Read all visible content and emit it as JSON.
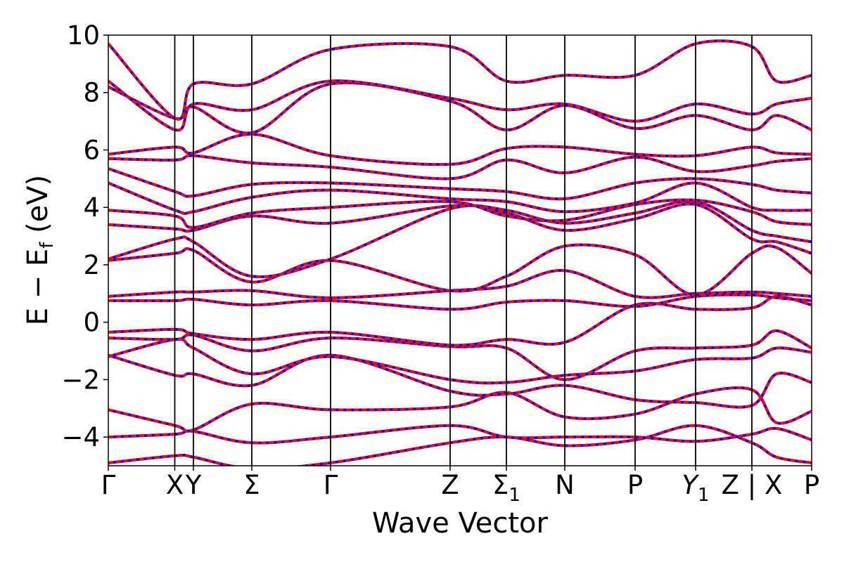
{
  "chart_data": {
    "type": "line",
    "title": "",
    "xlabel": "Wave Vector",
    "ylabel": "E − E",
    "ylabel_sub": "f",
    "ylabel_unit": " (eV)",
    "ylim": [
      -5,
      10
    ],
    "yticks": [
      -4,
      -2,
      0,
      2,
      4,
      6,
      8,
      10
    ],
    "ytick_labels": [
      "−4",
      "−2",
      "0",
      "2",
      "4",
      "6",
      "8",
      "10"
    ],
    "grid": false,
    "legend": "none",
    "xlim": [
      0,
      1
    ],
    "kpoints": [
      {
        "pos": 0.0,
        "label": "Γ"
      },
      {
        "pos": 0.0945,
        "label": "X"
      },
      {
        "pos": 0.121,
        "label": "Y"
      },
      {
        "pos": 0.204,
        "label": "Σ"
      },
      {
        "pos": 0.316,
        "label": "Γ"
      },
      {
        "pos": 0.486,
        "label": "Z"
      },
      {
        "pos": 0.566,
        "label": "Σ",
        "sub": "1"
      },
      {
        "pos": 0.649,
        "label": "N"
      },
      {
        "pos": 0.749,
        "label": "P"
      },
      {
        "pos": 0.835,
        "label": "Y",
        "sub": "1",
        "italic": true
      },
      {
        "pos": 0.915,
        "label": "Z | X"
      },
      {
        "pos": 1.0,
        "label": "P"
      }
    ],
    "series_styles": [
      {
        "color": "#0000ff",
        "dash": "none"
      },
      {
        "color": "#ff0000",
        "dash": "dashed"
      }
    ],
    "bands": [
      {
        "x": [
          0,
          0.095,
          0.121,
          0.204,
          0.316,
          0.486,
          0.566,
          0.649,
          0.749,
          0.835,
          0.915,
          0.95,
          1
        ],
        "y": [
          -4.9,
          -4.65,
          -4.7,
          -5.1,
          -4.9,
          -4.2,
          -4.0,
          -4.3,
          -4.1,
          -3.6,
          -4.2,
          -4.7,
          -4.9
        ]
      },
      {
        "x": [
          0,
          0.095,
          0.121,
          0.204,
          0.316,
          0.486,
          0.566,
          0.649,
          0.749,
          0.835,
          0.915,
          0.95,
          1
        ],
        "y": [
          -4.0,
          -3.9,
          -3.8,
          -4.2,
          -4.0,
          -3.6,
          -4.0,
          -4.0,
          -4.0,
          -4.15,
          -3.9,
          -3.7,
          -4.1
        ]
      },
      {
        "x": [
          0,
          0.095,
          0.121,
          0.204,
          0.316,
          0.486,
          0.566,
          0.649,
          0.749,
          0.835,
          0.915,
          0.95,
          1
        ],
        "y": [
          -3.05,
          -3.6,
          -3.75,
          -2.85,
          -3.05,
          -2.95,
          -2.45,
          -3.3,
          -3.2,
          -2.5,
          -2.35,
          -3.5,
          -3.1
        ]
      },
      {
        "x": [
          0,
          0.095,
          0.121,
          0.204,
          0.316,
          0.486,
          0.566,
          0.649,
          0.749,
          0.835,
          0.915,
          0.95,
          1
        ],
        "y": [
          -1.15,
          -1.85,
          -1.8,
          -2.2,
          -1.15,
          -2.4,
          -2.5,
          -2.2,
          -2.7,
          -2.8,
          -2.9,
          -1.8,
          -2.1
        ]
      },
      {
        "x": [
          0,
          0.095,
          0.121,
          0.204,
          0.316,
          0.486,
          0.566,
          0.649,
          0.749,
          0.835,
          0.915,
          0.95,
          1
        ],
        "y": [
          -1.2,
          -0.6,
          -0.9,
          -1.8,
          -1.2,
          -2.0,
          -2.1,
          -1.85,
          -1.7,
          -1.3,
          -1.25,
          -0.9,
          -1.05
        ]
      },
      {
        "x": [
          0,
          0.095,
          0.121,
          0.204,
          0.316,
          0.486,
          0.566,
          0.649,
          0.749,
          0.835,
          0.915,
          0.95,
          1
        ],
        "y": [
          -0.55,
          -0.6,
          -0.45,
          -1.0,
          -0.55,
          -0.85,
          -0.9,
          -2.0,
          -1.0,
          -0.9,
          -0.8,
          -0.3,
          -0.9
        ]
      },
      {
        "x": [
          0,
          0.095,
          0.121,
          0.204,
          0.316,
          0.486,
          0.566,
          0.649,
          0.749,
          0.835,
          0.915,
          0.95,
          1
        ],
        "y": [
          -0.35,
          -0.25,
          -0.4,
          -0.6,
          -0.35,
          -0.8,
          -0.6,
          -0.7,
          0.6,
          0.45,
          0.5,
          0.9,
          0.6
        ]
      },
      {
        "x": [
          0,
          0.095,
          0.121,
          0.204,
          0.316,
          0.486,
          0.566,
          0.649,
          0.749,
          0.835,
          0.915,
          0.95,
          1
        ],
        "y": [
          0.75,
          0.75,
          0.8,
          0.6,
          0.75,
          0.45,
          0.7,
          0.75,
          0.55,
          0.9,
          0.95,
          0.85,
          0.75
        ]
      },
      {
        "x": [
          0,
          0.095,
          0.121,
          0.204,
          0.316,
          0.486,
          0.566,
          0.649,
          0.749,
          0.835,
          0.915,
          0.95,
          1
        ],
        "y": [
          0.9,
          1.05,
          1.05,
          1.1,
          0.85,
          1.1,
          1.25,
          1.8,
          0.9,
          1.0,
          1.05,
          1.0,
          0.9
        ]
      },
      {
        "x": [
          0,
          0.095,
          0.121,
          0.204,
          0.316,
          0.486,
          0.566,
          0.649,
          0.749,
          0.835,
          0.915,
          0.95,
          1
        ],
        "y": [
          2.15,
          2.4,
          2.5,
          1.4,
          2.15,
          1.1,
          1.6,
          2.65,
          2.35,
          0.95,
          2.4,
          2.6,
          1.7
        ]
      },
      {
        "x": [
          0,
          0.095,
          0.121,
          0.204,
          0.316,
          0.486,
          0.566,
          0.649,
          0.749,
          0.835,
          0.915,
          0.95,
          1
        ],
        "y": [
          2.2,
          2.9,
          2.8,
          1.6,
          2.2,
          3.95,
          3.8,
          3.2,
          3.6,
          4.1,
          2.9,
          2.8,
          2.4
        ]
      },
      {
        "x": [
          0,
          0.095,
          0.121,
          0.204,
          0.316,
          0.486,
          0.566,
          0.649,
          0.749,
          0.835,
          0.915,
          0.95,
          1
        ],
        "y": [
          3.4,
          3.25,
          3.2,
          3.7,
          3.45,
          4.05,
          3.9,
          3.45,
          3.8,
          4.2,
          3.2,
          3.0,
          2.8
        ]
      },
      {
        "x": [
          0,
          0.095,
          0.121,
          0.204,
          0.316,
          0.486,
          0.566,
          0.649,
          0.749,
          0.835,
          0.915,
          0.95,
          1
        ],
        "y": [
          3.9,
          3.7,
          3.3,
          3.8,
          4.0,
          4.2,
          3.7,
          3.55,
          4.1,
          4.25,
          3.85,
          3.5,
          3.4
        ]
      },
      {
        "x": [
          0,
          0.095,
          0.121,
          0.204,
          0.316,
          0.486,
          0.566,
          0.649,
          0.749,
          0.835,
          0.915,
          0.95,
          1
        ],
        "y": [
          4.85,
          3.9,
          3.85,
          4.35,
          4.6,
          4.3,
          4.2,
          3.85,
          4.15,
          4.85,
          4.0,
          3.9,
          3.9
        ]
      },
      {
        "x": [
          0,
          0.095,
          0.121,
          0.204,
          0.316,
          0.486,
          0.566,
          0.649,
          0.749,
          0.835,
          0.915,
          0.95,
          1
        ],
        "y": [
          5.35,
          4.55,
          4.4,
          4.8,
          4.85,
          4.65,
          4.55,
          4.3,
          4.85,
          5.0,
          4.8,
          4.6,
          4.5
        ]
      },
      {
        "x": [
          0,
          0.095,
          0.121,
          0.204,
          0.316,
          0.486,
          0.566,
          0.649,
          0.749,
          0.835,
          0.915,
          0.95,
          1
        ],
        "y": [
          5.7,
          5.65,
          5.8,
          5.55,
          5.4,
          5.0,
          5.65,
          5.2,
          5.75,
          5.25,
          5.45,
          5.6,
          5.7
        ]
      },
      {
        "x": [
          0,
          0.095,
          0.121,
          0.204,
          0.316,
          0.486,
          0.566,
          0.649,
          0.749,
          0.835,
          0.915,
          0.95,
          1
        ],
        "y": [
          5.85,
          6.1,
          5.9,
          6.55,
          5.8,
          5.5,
          6.05,
          6.1,
          5.85,
          5.8,
          6.1,
          5.9,
          5.85
        ]
      },
      {
        "x": [
          0,
          0.095,
          0.121,
          0.204,
          0.316,
          0.486,
          0.566,
          0.649,
          0.749,
          0.835,
          0.915,
          0.95,
          1
        ],
        "y": [
          8.2,
          7.1,
          7.5,
          6.6,
          8.3,
          7.7,
          6.7,
          7.55,
          6.75,
          7.2,
          6.7,
          7.2,
          6.7
        ]
      },
      {
        "x": [
          0,
          0.095,
          0.121,
          0.204,
          0.316,
          0.486,
          0.566,
          0.649,
          0.749,
          0.835,
          0.915,
          0.95,
          1
        ],
        "y": [
          8.4,
          6.7,
          7.6,
          7.4,
          8.4,
          7.8,
          7.4,
          7.6,
          7.0,
          7.6,
          7.25,
          7.6,
          7.8
        ]
      },
      {
        "x": [
          0,
          0.095,
          0.121,
          0.204,
          0.316,
          0.486,
          0.566,
          0.649,
          0.749,
          0.835,
          0.915,
          0.95,
          1
        ],
        "y": [
          9.7,
          7.1,
          8.3,
          8.3,
          9.5,
          9.6,
          8.4,
          8.6,
          8.6,
          9.7,
          9.6,
          8.4,
          8.6
        ]
      }
    ]
  }
}
